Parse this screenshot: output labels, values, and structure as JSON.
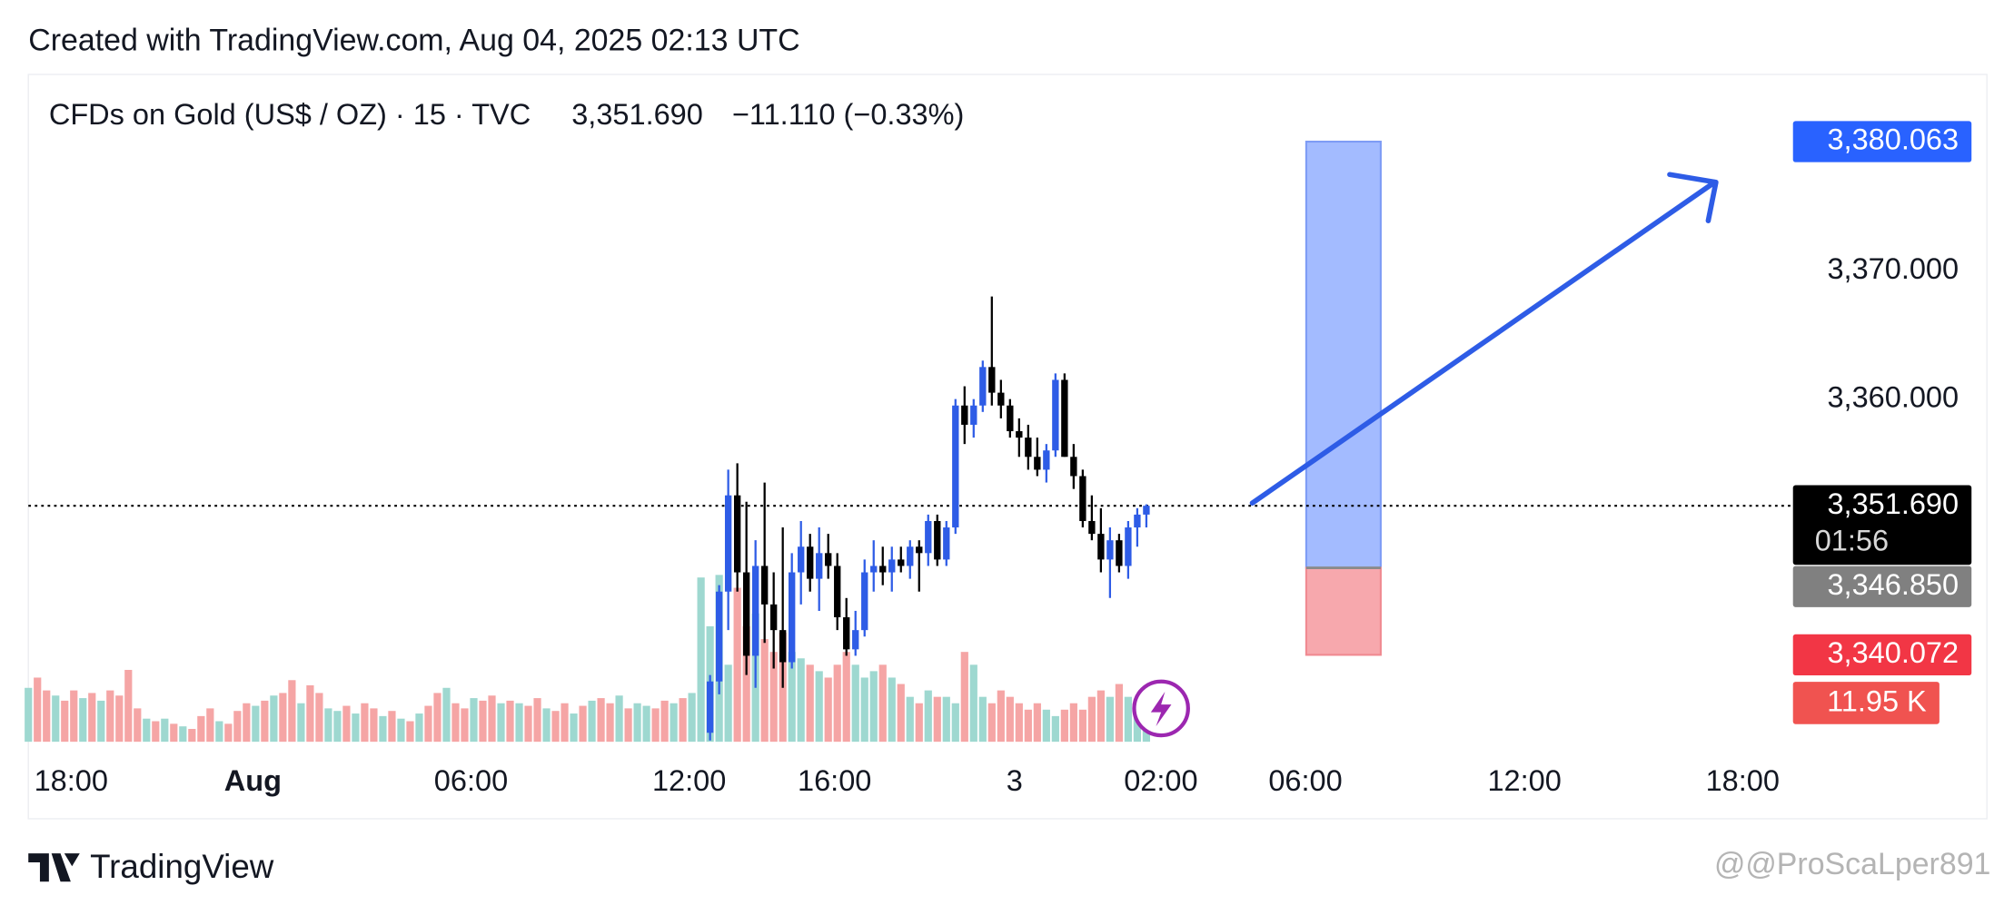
{
  "header": "Created with TradingView.com, Aug 04, 2025 02:13 UTC",
  "watermark": "@@ProScaLper891",
  "brand": "TradingView",
  "chart_data": {
    "type": "candlestick",
    "title": "CFDs on Gold (US$ / OZ) · 15 · TVC",
    "last": "3,351.690",
    "change": "−11.110 (−0.33%)",
    "up_color": "#2e5ce6",
    "down_color": "#000000",
    "candles": {
      "x": [
        75,
        76,
        77,
        78,
        79,
        80,
        81,
        82,
        83,
        84,
        85,
        86,
        87,
        88,
        89,
        90,
        91,
        92,
        93,
        94,
        95,
        96,
        97,
        98,
        99,
        100,
        101,
        102,
        103,
        104,
        105,
        106,
        107,
        108,
        109,
        110,
        111,
        112,
        113,
        114,
        115,
        116,
        117,
        118,
        119,
        120,
        121,
        122,
        123
      ],
      "open": [
        3334.0,
        3338.0,
        3345.0,
        3352.5,
        3346.5,
        3340.0,
        3347.0,
        3344.0,
        3342.0,
        3339.5,
        3346.5,
        3348.5,
        3346.0,
        3348.0,
        3347.0,
        3343.0,
        3340.5,
        3342.0,
        3346.5,
        3347.0,
        3346.5,
        3347.5,
        3347.0,
        3348.5,
        3348.0,
        3350.5,
        3347.5,
        3350.0,
        3359.5,
        3358.0,
        3359.5,
        3362.5,
        3360.5,
        3359.5,
        3357.5,
        3357.0,
        3355.5,
        3354.5,
        3356.0,
        3361.5,
        3355.5,
        3354.0,
        3350.5,
        3349.5,
        3347.5,
        3349.0,
        3347.0,
        3350.0,
        3351.0
      ],
      "high": [
        3338.5,
        3345.5,
        3354.5,
        3355.0,
        3352.0,
        3349.0,
        3353.5,
        3346.5,
        3350.0,
        3348.0,
        3350.5,
        3349.5,
        3350.0,
        3349.5,
        3348.0,
        3344.5,
        3343.5,
        3347.5,
        3349.0,
        3348.5,
        3348.5,
        3348.5,
        3349.0,
        3349.0,
        3351.0,
        3351.0,
        3350.5,
        3360.0,
        3361.0,
        3360.0,
        3363.0,
        3368.0,
        3361.5,
        3360.0,
        3358.5,
        3358.0,
        3357.0,
        3356.5,
        3362.0,
        3362.0,
        3356.5,
        3354.5,
        3352.5,
        3351.5,
        3350.0,
        3349.5,
        3350.5,
        3351.5,
        3351.8
      ],
      "low": [
        3333.4,
        3337.0,
        3342.0,
        3345.0,
        3338.5,
        3337.5,
        3341.0,
        3339.0,
        3337.5,
        3339.0,
        3344.0,
        3345.0,
        3343.5,
        3346.0,
        3342.0,
        3340.0,
        3340.0,
        3341.5,
        3345.0,
        3345.5,
        3345.0,
        3346.5,
        3346.0,
        3345.0,
        3347.0,
        3347.0,
        3347.0,
        3349.5,
        3356.5,
        3357.0,
        3359.0,
        3359.5,
        3358.5,
        3357.0,
        3355.5,
        3354.5,
        3354.0,
        3353.5,
        3355.5,
        3355.5,
        3353.0,
        3350.0,
        3349.0,
        3346.5,
        3344.5,
        3346.5,
        3346.0,
        3348.5,
        3350.0
      ],
      "close": [
        3338.0,
        3345.0,
        3352.5,
        3346.5,
        3340.0,
        3347.0,
        3344.0,
        3342.0,
        3339.5,
        3346.5,
        3348.5,
        3346.0,
        3348.0,
        3347.0,
        3343.0,
        3340.5,
        3342.0,
        3346.5,
        3347.0,
        3346.5,
        3347.5,
        3347.0,
        3348.5,
        3348.0,
        3350.5,
        3347.5,
        3350.0,
        3359.5,
        3358.0,
        3359.5,
        3362.5,
        3360.5,
        3359.5,
        3357.5,
        3357.0,
        3355.5,
        3354.5,
        3356.0,
        3361.5,
        3355.5,
        3354.0,
        3350.5,
        3349.5,
        3347.5,
        3349.0,
        3347.0,
        3350.0,
        3351.0,
        3351.69
      ]
    },
    "volume": [
      4.2,
      5.0,
      4.0,
      3.6,
      3.2,
      4.0,
      3.4,
      3.8,
      3.2,
      4.0,
      3.6,
      5.6,
      2.6,
      1.8,
      1.6,
      1.8,
      1.4,
      1.2,
      1.0,
      2.0,
      2.6,
      1.6,
      1.4,
      2.4,
      3.0,
      2.8,
      3.2,
      3.6,
      3.8,
      4.8,
      3.0,
      4.4,
      3.8,
      2.6,
      2.4,
      2.8,
      2.2,
      3.0,
      2.6,
      2.0,
      2.4,
      1.8,
      1.6,
      2.2,
      2.8,
      3.8,
      4.2,
      3.0,
      2.6,
      3.4,
      3.2,
      3.6,
      3.0,
      3.2,
      3.0,
      2.8,
      3.4,
      2.6,
      2.4,
      3.0,
      2.2,
      2.8,
      3.2,
      3.4,
      3.0,
      3.6,
      2.6,
      3.0,
      2.8,
      2.6,
      3.2,
      3.0,
      3.4,
      3.8,
      12.8,
      9,
      13,
      6,
      12,
      9,
      10,
      8,
      7,
      8.5,
      7,
      6.5,
      6,
      5.5,
      5,
      6,
      7,
      6,
      5,
      5.5,
      6,
      5,
      4.5,
      3.5,
      3,
      4,
      3.5,
      3.5,
      3,
      7,
      6,
      3.5,
      3,
      4,
      3.5,
      3,
      2.5,
      3,
      2.5,
      2,
      2.5,
      3,
      2.5,
      3.5,
      4,
      3.5,
      4.5,
      3.5,
      3,
      1.5
    ],
    "volume_up": [
      1,
      0,
      0,
      1,
      0,
      0,
      1,
      0,
      1,
      0,
      0,
      0,
      0,
      1,
      0,
      1,
      0,
      1,
      0,
      0,
      0,
      1,
      0,
      0,
      0,
      1,
      0,
      1,
      0,
      0,
      1,
      0,
      0,
      1,
      1,
      0,
      1,
      0,
      0,
      1,
      0,
      1,
      0,
      1,
      0,
      0,
      1,
      0,
      0,
      1,
      0,
      0,
      1,
      0,
      1,
      0,
      0,
      1,
      0,
      0,
      1,
      0,
      1,
      0,
      0,
      1,
      0,
      1,
      1,
      0,
      0,
      1,
      0,
      1,
      1,
      1,
      1,
      1,
      0,
      0,
      1,
      0,
      0,
      0,
      1,
      1,
      0,
      1,
      0,
      0,
      0,
      1,
      1,
      1,
      0,
      1,
      0,
      1,
      0,
      1,
      0,
      1,
      1,
      0,
      1,
      1,
      0,
      0,
      0,
      0,
      0,
      0,
      1,
      1,
      0,
      0,
      0,
      0,
      0,
      1,
      0,
      1,
      1,
      1
    ],
    "volume_up_color": "#9ed8d0",
    "volume_down_color": "#f5a5a5",
    "volume_label": "11.95 K",
    "countdown": "01:56",
    "xlim": [
      0,
      194
    ],
    "xticks": [
      {
        "value": 4.7,
        "label": "18:00"
      },
      {
        "value": 24.7,
        "label": "Aug",
        "bold": true
      },
      {
        "value": 48.7,
        "label": "06:00"
      },
      {
        "value": 72.7,
        "label": "12:00"
      },
      {
        "value": 88.7,
        "label": "16:00"
      },
      {
        "value": 108.5,
        "label": "3"
      },
      {
        "value": 124.6,
        "label": "02:00"
      },
      {
        "value": 140.5,
        "label": "06:00"
      },
      {
        "value": 164.6,
        "label": "12:00"
      },
      {
        "value": 188.6,
        "label": "18:00"
      }
    ],
    "ylim": [
      3333.1,
      3385.3
    ],
    "yticks": [
      {
        "value": 3360,
        "label": "3,360.000"
      },
      {
        "value": 3370,
        "label": "3,370.000"
      }
    ],
    "price_labels": [
      {
        "value": 3380.063,
        "label": "3,380.063",
        "color": "#2962ff"
      },
      {
        "value": 3351.69,
        "label": "3,351.690",
        "color": "#000000"
      },
      {
        "value": 3346.85,
        "label": "3,346.850",
        "color": "#808080"
      },
      {
        "value": 3340.072,
        "label": "3,340.072",
        "color": "#f23645"
      }
    ]
  }
}
